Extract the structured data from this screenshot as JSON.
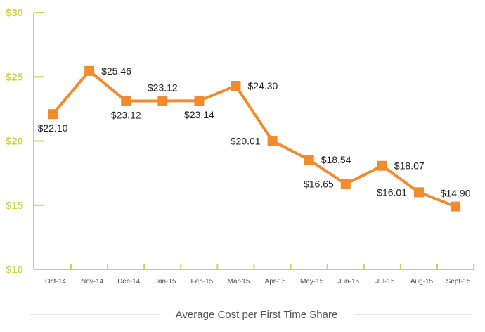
{
  "chart_data": {
    "type": "line",
    "title": "Average Cost per First Time Share",
    "xlabel": "",
    "ylabel": "",
    "categories": [
      "Oct-14",
      "Nov-14",
      "Dec-14",
      "Jan-15",
      "Feb-15",
      "Mar-15",
      "Apr-15",
      "May-15",
      "Jun-15",
      "Jul-15",
      "Aug-15",
      "Sept-15"
    ],
    "series": [
      {
        "name": "Average Cost per First Time Share",
        "values": [
          22.1,
          25.46,
          23.12,
          23.12,
          23.14,
          24.3,
          20.01,
          18.54,
          16.65,
          18.07,
          16.01,
          14.9
        ],
        "labels": [
          "$22.10",
          "$25.46",
          "$23.12",
          "$23.12",
          "$23.14",
          "$24.30",
          "$20.01",
          "$18.54",
          "$16.65",
          "$18.07",
          "$16.01",
          "$14.90"
        ],
        "label_positions": [
          "below",
          "right",
          "below",
          "above",
          "below",
          "right",
          "left",
          "right",
          "left",
          "right",
          "left",
          "above"
        ]
      }
    ],
    "ylim": [
      10,
      30
    ],
    "yticks": [
      10,
      15,
      20,
      25,
      30
    ],
    "ytick_labels": [
      "$10",
      "$15",
      "$20",
      "$25",
      "$30"
    ],
    "grid": false,
    "colors": {
      "line": "#f28a2e",
      "axis": "#d4cf4f",
      "text": "#222222",
      "xtick": "#4a4a4a",
      "caption": "#555555"
    }
  }
}
